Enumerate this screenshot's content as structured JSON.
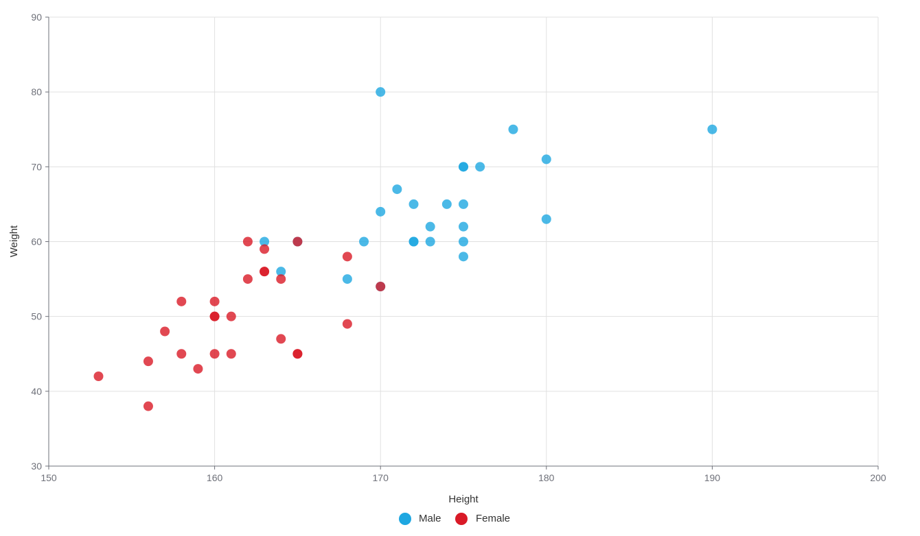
{
  "chart_data": {
    "type": "scatter",
    "xlabel": "Height",
    "ylabel": "Weight",
    "xlim": [
      150,
      200
    ],
    "ylim": [
      30,
      90
    ],
    "x_ticks": [
      "150",
      "160",
      "170",
      "180",
      "190",
      "200"
    ],
    "y_ticks": [
      "30",
      "40",
      "50",
      "60",
      "70",
      "80",
      "90"
    ],
    "grid": true,
    "legend_position": "bottom-center",
    "series": [
      {
        "name": "Male",
        "color": "#1ea7e1",
        "points": [
          [
            163,
            60
          ],
          [
            164,
            56
          ],
          [
            165,
            60
          ],
          [
            168,
            55
          ],
          [
            169,
            60
          ],
          [
            170,
            54
          ],
          [
            170,
            64
          ],
          [
            170,
            80
          ],
          [
            171,
            67
          ],
          [
            172,
            60
          ],
          [
            172,
            60
          ],
          [
            172,
            65
          ],
          [
            173,
            60
          ],
          [
            173,
            62
          ],
          [
            174,
            65
          ],
          [
            175,
            58
          ],
          [
            175,
            60
          ],
          [
            175,
            62
          ],
          [
            175,
            65
          ],
          [
            175,
            70
          ],
          [
            175,
            70
          ],
          [
            176,
            70
          ],
          [
            178,
            75
          ],
          [
            180,
            63
          ],
          [
            180,
            71
          ],
          [
            190,
            75
          ]
        ]
      },
      {
        "name": "Female",
        "color": "#d91a27",
        "points": [
          [
            153,
            42
          ],
          [
            156,
            38
          ],
          [
            156,
            44
          ],
          [
            157,
            48
          ],
          [
            158,
            45
          ],
          [
            158,
            52
          ],
          [
            159,
            43
          ],
          [
            160,
            45
          ],
          [
            160,
            50
          ],
          [
            160,
            50
          ],
          [
            160,
            52
          ],
          [
            161,
            45
          ],
          [
            161,
            50
          ],
          [
            162,
            55
          ],
          [
            162,
            60
          ],
          [
            163,
            56
          ],
          [
            163,
            56
          ],
          [
            163,
            59
          ],
          [
            164,
            47
          ],
          [
            164,
            55
          ],
          [
            165,
            45
          ],
          [
            165,
            45
          ],
          [
            165,
            60
          ],
          [
            168,
            49
          ],
          [
            168,
            58
          ],
          [
            170,
            54
          ]
        ]
      }
    ]
  }
}
